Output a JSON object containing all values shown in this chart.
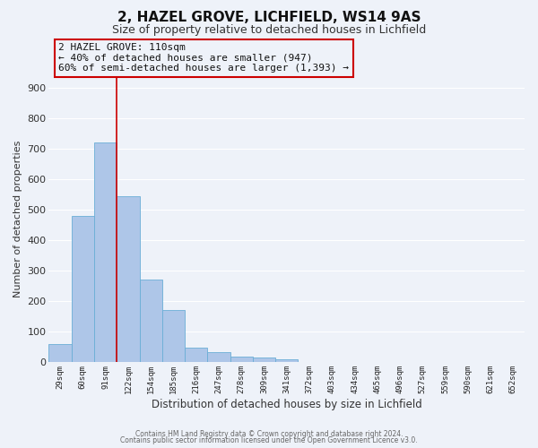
{
  "title": "2, HAZEL GROVE, LICHFIELD, WS14 9AS",
  "subtitle": "Size of property relative to detached houses in Lichfield",
  "xlabel": "Distribution of detached houses by size in Lichfield",
  "ylabel": "Number of detached properties",
  "bar_labels": [
    "29sqm",
    "60sqm",
    "91sqm",
    "122sqm",
    "154sqm",
    "185sqm",
    "216sqm",
    "247sqm",
    "278sqm",
    "309sqm",
    "341sqm",
    "372sqm",
    "403sqm",
    "434sqm",
    "465sqm",
    "496sqm",
    "527sqm",
    "559sqm",
    "590sqm",
    "621sqm",
    "652sqm"
  ],
  "bar_values": [
    60,
    480,
    720,
    545,
    270,
    170,
    47,
    33,
    17,
    13,
    8,
    0,
    0,
    0,
    0,
    0,
    0,
    0,
    0,
    0,
    0
  ],
  "bar_color": "#aec6e8",
  "bar_edge_color": "#6aaed6",
  "vline_x": 2.5,
  "vline_color": "#cc0000",
  "annotation_text": "2 HAZEL GROVE: 110sqm\n← 40% of detached houses are smaller (947)\n60% of semi-detached houses are larger (1,393) →",
  "annotation_box_color": "#cc0000",
  "ylim": [
    0,
    940
  ],
  "yticks": [
    0,
    100,
    200,
    300,
    400,
    500,
    600,
    700,
    800,
    900
  ],
  "background_color": "#eef2f9",
  "grid_color": "#ffffff",
  "footer_line1": "Contains HM Land Registry data © Crown copyright and database right 2024.",
  "footer_line2": "Contains public sector information licensed under the Open Government Licence v3.0."
}
